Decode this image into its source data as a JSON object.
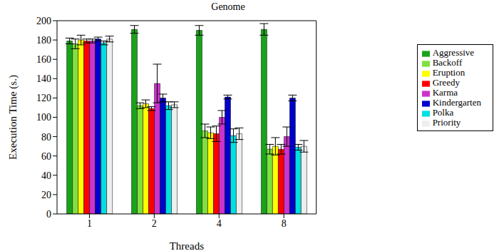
{
  "chart_data": {
    "type": "bar",
    "title": "Genome",
    "x_label": "Threads",
    "y_label": "Execution Time (s.)",
    "categories": [
      "1",
      "2",
      "4",
      "8"
    ],
    "ylim": [
      0,
      200
    ],
    "yticks": [
      0,
      20,
      40,
      60,
      80,
      100,
      120,
      140,
      160,
      180,
      200
    ],
    "grid": false,
    "legend": "right",
    "series": [
      {
        "name": "Aggressive",
        "color": "#1aa31a",
        "values": [
          179,
          191,
          190,
          191
        ],
        "errors": [
          3,
          4,
          5,
          6
        ]
      },
      {
        "name": "Backoff",
        "color": "#80e040",
        "values": [
          176,
          112,
          86,
          67
        ],
        "errors": [
          5,
          3,
          7,
          5
        ]
      },
      {
        "name": "Eruption",
        "color": "#ffff00",
        "values": [
          180,
          114,
          84,
          70
        ],
        "errors": [
          5,
          4,
          6,
          9
        ]
      },
      {
        "name": "Greedy",
        "color": "#ff0000",
        "values": [
          179,
          109,
          83,
          67
        ],
        "errors": [
          2,
          2,
          8,
          5
        ]
      },
      {
        "name": "Karma",
        "color": "#cc33cc",
        "values": [
          179,
          135,
          100,
          80
        ],
        "errors": [
          2,
          20,
          7,
          10
        ]
      },
      {
        "name": "Kindergarten",
        "color": "#0000cc",
        "values": [
          181,
          120,
          121,
          120
        ],
        "errors": [
          2,
          4,
          2,
          3
        ]
      },
      {
        "name": "Polka",
        "color": "#00e0e0",
        "values": [
          177,
          112,
          81,
          69
        ],
        "errors": [
          2,
          4,
          7,
          3
        ]
      },
      {
        "name": "Priority",
        "color": "#eeeeee",
        "values": [
          181,
          113,
          83,
          70
        ],
        "errors": [
          3,
          3,
          6,
          6
        ]
      }
    ]
  }
}
